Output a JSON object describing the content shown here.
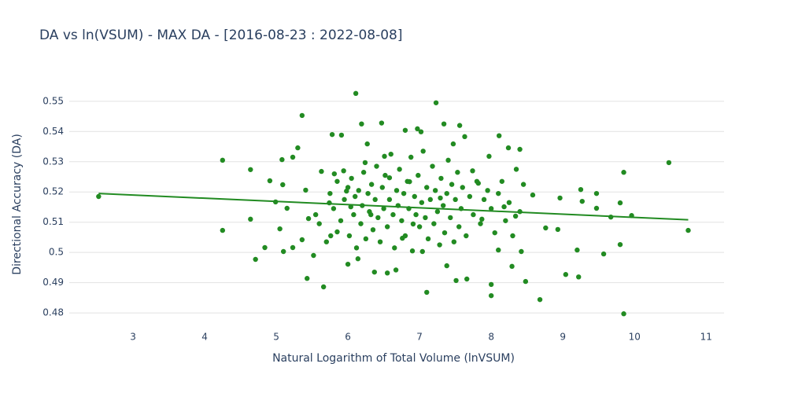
{
  "chart_data": {
    "type": "scatter",
    "title": "DA vs ln(VSUM) - MAX DA - [2016-08-23 : 2022-08-08]",
    "xlabel": "Natural Logarithm of Total Volume (lnVSUM)",
    "ylabel": "Directional Accuracy (DA)",
    "xlim": [
      2.11,
      11.25
    ],
    "ylim": [
      0.4769,
      0.5549
    ],
    "xticks": [
      3,
      4,
      5,
      6,
      7,
      8,
      9,
      10,
      11
    ],
    "yticks": [
      0.48,
      0.49,
      0.5,
      0.51,
      0.52,
      0.53,
      0.54,
      0.55
    ],
    "grid": true,
    "series": [
      {
        "type": "scatter",
        "color": "#228b22",
        "x": [
          2.52,
          4.25,
          4.25,
          4.64,
          4.64,
          4.71,
          4.91,
          4.84,
          4.99,
          5.05,
          5.08,
          5.09,
          5.1,
          5.15,
          5.23,
          5.23,
          5.3,
          5.36,
          5.36,
          5.41,
          5.43,
          5.45,
          5.52,
          5.63,
          5.66,
          5.74,
          5.76,
          5.78,
          5.81,
          5.85,
          5.91,
          5.94,
          5.98,
          6.0,
          6.04,
          6.11,
          6.14,
          6.19,
          6.24,
          6.27,
          6.32,
          6.37,
          6.47,
          6.51,
          6.55,
          6.58,
          6.67,
          6.76,
          6.8,
          6.86,
          6.91,
          6.97,
          7.02,
          7.04,
          7.1,
          7.23,
          7.29,
          7.34,
          7.38,
          7.47,
          7.51,
          7.56,
          7.63,
          7.66,
          7.74,
          7.82,
          7.87,
          7.97,
          8.0,
          8.0,
          8.11,
          8.1,
          8.18,
          8.24,
          8.29,
          8.34,
          8.4,
          8.42,
          8.48,
          8.58,
          8.68,
          8.76,
          8.93,
          8.96,
          9.04,
          9.2,
          9.22,
          9.25,
          9.27,
          9.47,
          9.47,
          9.57,
          9.67,
          9.8,
          9.8,
          9.85,
          9.85,
          9.96,
          10.48,
          10.75,
          5.55,
          5.6,
          5.7,
          5.75,
          5.8,
          5.85,
          5.9,
          5.95,
          6.0,
          6.02,
          6.05,
          6.08,
          6.1,
          6.12,
          6.15,
          6.18,
          6.2,
          6.22,
          6.25,
          6.28,
          6.3,
          6.33,
          6.35,
          6.38,
          6.4,
          6.42,
          6.45,
          6.48,
          6.5,
          6.52,
          6.55,
          6.58,
          6.6,
          6.63,
          6.65,
          6.68,
          6.7,
          6.72,
          6.75,
          6.78,
          6.8,
          6.83,
          6.85,
          6.88,
          6.9,
          6.93,
          6.95,
          6.98,
          7.0,
          7.03,
          7.05,
          7.08,
          7.1,
          7.12,
          7.15,
          7.18,
          7.2,
          7.22,
          7.25,
          7.28,
          7.3,
          7.33,
          7.35,
          7.38,
          7.4,
          7.43,
          7.45,
          7.48,
          7.5,
          7.53,
          7.55,
          7.58,
          7.6,
          7.65,
          7.7,
          7.75,
          7.8,
          7.85,
          7.9,
          7.95,
          8.0,
          8.05,
          8.1,
          8.15,
          8.2,
          8.25,
          8.3,
          8.35,
          8.4,
          8.45
        ],
        "values": [
          0.5185,
          0.5305,
          0.5073,
          0.5274,
          0.511,
          0.4977,
          0.5237,
          0.5016,
          0.5167,
          0.5078,
          0.5307,
          0.5224,
          0.5003,
          0.5146,
          0.5315,
          0.5016,
          0.5346,
          0.5453,
          0.5042,
          0.5206,
          0.4914,
          0.5112,
          0.499,
          0.5268,
          0.4886,
          0.5164,
          0.5055,
          0.539,
          0.526,
          0.5068,
          0.5388,
          0.527,
          0.5203,
          0.4961,
          0.5151,
          0.5526,
          0.4979,
          0.5425,
          0.5297,
          0.5359,
          0.5125,
          0.4935,
          0.5428,
          0.5318,
          0.4932,
          0.5247,
          0.4942,
          0.5047,
          0.5404,
          0.5234,
          0.5094,
          0.5409,
          0.5399,
          0.5003,
          0.4868,
          0.5495,
          0.518,
          0.5425,
          0.4956,
          0.5359,
          0.4907,
          0.542,
          0.5383,
          0.4912,
          0.527,
          0.5229,
          0.511,
          0.5318,
          0.4894,
          0.4857,
          0.5386,
          0.5008,
          0.5151,
          0.5346,
          0.4954,
          0.512,
          0.5341,
          0.5003,
          0.4904,
          0.519,
          0.4844,
          0.5081,
          0.5076,
          0.518,
          0.4927,
          0.5008,
          0.4919,
          0.5208,
          0.5169,
          0.5195,
          0.5146,
          0.4995,
          0.5117,
          0.5164,
          0.5026,
          0.5265,
          0.4797,
          0.5122,
          0.5297,
          0.5073,
          0.5125,
          0.5095,
          0.5035,
          0.5195,
          0.5145,
          0.5235,
          0.5105,
          0.5175,
          0.5215,
          0.5055,
          0.5245,
          0.5125,
          0.5185,
          0.5015,
          0.5205,
          0.5095,
          0.5155,
          0.5265,
          0.5045,
          0.5195,
          0.5135,
          0.5225,
          0.5075,
          0.5175,
          0.5285,
          0.5115,
          0.5035,
          0.5215,
          0.5145,
          0.5255,
          0.5085,
          0.5175,
          0.5325,
          0.5125,
          0.5015,
          0.5205,
          0.5155,
          0.5275,
          0.5105,
          0.5195,
          0.5055,
          0.5235,
          0.5145,
          0.5315,
          0.5005,
          0.5185,
          0.5125,
          0.5255,
          0.5085,
          0.5165,
          0.5335,
          0.5115,
          0.5215,
          0.5045,
          0.5175,
          0.5285,
          0.5095,
          0.5205,
          0.5135,
          0.5025,
          0.5245,
          0.5155,
          0.5065,
          0.5195,
          0.5305,
          0.5115,
          0.5225,
          0.5035,
          0.5175,
          0.5265,
          0.5085,
          0.5145,
          0.5215,
          0.5055,
          0.5185,
          0.5125,
          0.5235,
          0.5095,
          0.5175,
          0.5205,
          0.5145,
          0.5065,
          0.5195,
          0.5235,
          0.5105,
          0.5165,
          0.5055,
          0.5275,
          0.5135,
          0.5225
        ]
      },
      {
        "type": "line",
        "color": "#228b22",
        "x": [
          2.52,
          10.75
        ],
        "values": [
          0.5195,
          0.5108
        ]
      }
    ]
  }
}
